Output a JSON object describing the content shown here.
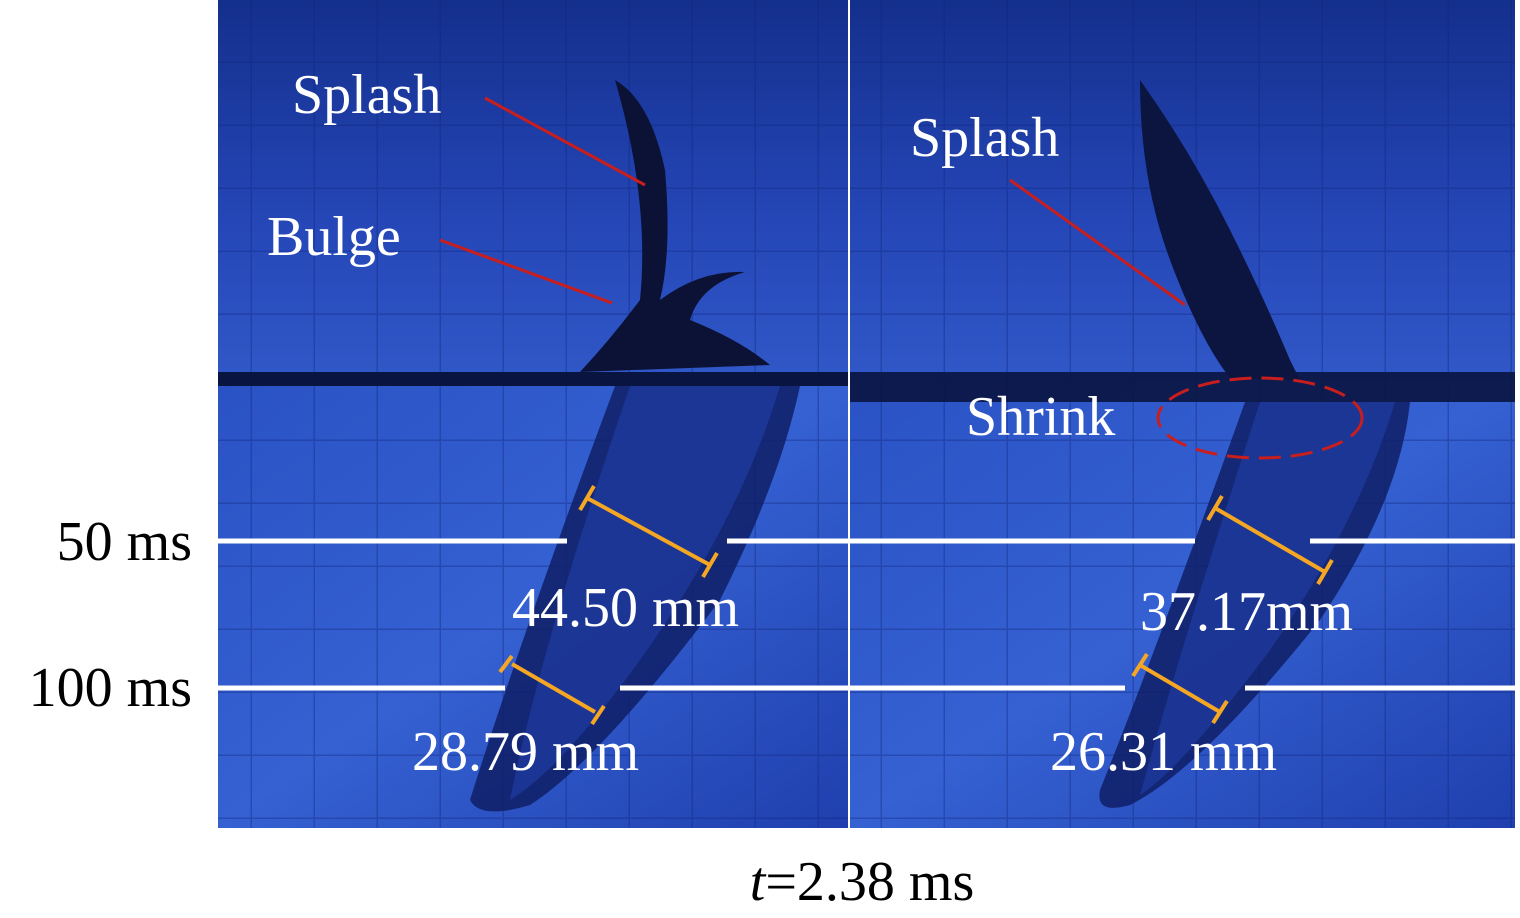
{
  "row_labels": [
    "50 ms",
    "100 ms"
  ],
  "panels": [
    {
      "annotations": [
        "Splash",
        "Bulge"
      ],
      "measurements": [
        "44.50 mm",
        "28.79 mm"
      ]
    },
    {
      "annotations": [
        "Splash",
        "Shrink"
      ],
      "measurements": [
        "37.17mm",
        "26.31 mm"
      ]
    }
  ],
  "caption": {
    "italic": "t",
    "text": "=2.38 ms"
  }
}
